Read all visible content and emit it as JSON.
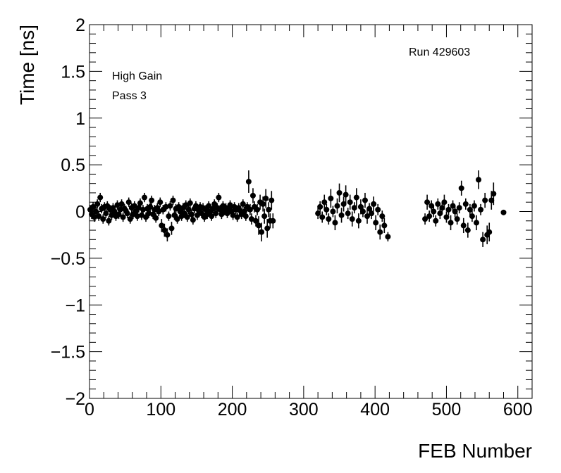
{
  "chart_data": {
    "type": "scatter",
    "title": "",
    "xlabel": "FEB Number",
    "ylabel": "Time [ns]",
    "xlim": [
      0,
      620
    ],
    "ylim": [
      -2,
      2
    ],
    "x_ticks": [
      "0",
      "100",
      "200",
      "300",
      "400",
      "500",
      "600"
    ],
    "y_ticks": [
      "−2",
      "−1.5",
      "−1",
      "−0.5",
      "0",
      "0.5",
      "1",
      "1.5",
      "2"
    ],
    "grid": false,
    "annotations": {
      "gain": "High Gain",
      "pass": "Pass 3",
      "run": "Run 429603"
    },
    "series": [
      {
        "marker": "filled-circle",
        "color": "#000000",
        "points": [
          {
            "x": 1,
            "y": 0.02,
            "err": 0.05
          },
          {
            "x": 3,
            "y": -0.03,
            "err": 0.05
          },
          {
            "x": 5,
            "y": 0.05,
            "err": 0.05
          },
          {
            "x": 7,
            "y": -0.06,
            "err": 0.05
          },
          {
            "x": 9,
            "y": 0.0,
            "err": 0.05
          },
          {
            "x": 11,
            "y": 0.08,
            "err": 0.05
          },
          {
            "x": 13,
            "y": -0.05,
            "err": 0.05
          },
          {
            "x": 15,
            "y": 0.15,
            "err": 0.05
          },
          {
            "x": 17,
            "y": 0.03,
            "err": 0.05
          },
          {
            "x": 19,
            "y": -0.08,
            "err": 0.05
          },
          {
            "x": 21,
            "y": 0.05,
            "err": 0.05
          },
          {
            "x": 23,
            "y": -0.02,
            "err": 0.05
          },
          {
            "x": 25,
            "y": 0.06,
            "err": 0.05
          },
          {
            "x": 27,
            "y": -0.1,
            "err": 0.05
          },
          {
            "x": 29,
            "y": 0.02,
            "err": 0.05
          },
          {
            "x": 31,
            "y": -0.04,
            "err": 0.05
          },
          {
            "x": 33,
            "y": 0.04,
            "err": 0.05
          },
          {
            "x": 35,
            "y": 0.0,
            "err": 0.05
          },
          {
            "x": 37,
            "y": -0.05,
            "err": 0.05
          },
          {
            "x": 39,
            "y": 0.07,
            "err": 0.05
          },
          {
            "x": 41,
            "y": -0.03,
            "err": 0.05
          },
          {
            "x": 43,
            "y": 0.02,
            "err": 0.05
          },
          {
            "x": 45,
            "y": 0.08,
            "err": 0.05
          },
          {
            "x": 47,
            "y": -0.06,
            "err": 0.05
          },
          {
            "x": 49,
            "y": 0.03,
            "err": 0.05
          },
          {
            "x": 51,
            "y": 0.01,
            "err": 0.05
          },
          {
            "x": 53,
            "y": -0.02,
            "err": 0.05
          },
          {
            "x": 55,
            "y": 0.1,
            "err": 0.05
          },
          {
            "x": 57,
            "y": -0.08,
            "err": 0.05
          },
          {
            "x": 59,
            "y": 0.04,
            "err": 0.05
          },
          {
            "x": 61,
            "y": -0.03,
            "err": 0.05
          },
          {
            "x": 63,
            "y": 0.06,
            "err": 0.05
          },
          {
            "x": 65,
            "y": 0.0,
            "err": 0.05
          },
          {
            "x": 67,
            "y": -0.05,
            "err": 0.05
          },
          {
            "x": 69,
            "y": 0.04,
            "err": 0.05
          },
          {
            "x": 71,
            "y": 0.09,
            "err": 0.05
          },
          {
            "x": 73,
            "y": -0.04,
            "err": 0.05
          },
          {
            "x": 75,
            "y": 0.02,
            "err": 0.05
          },
          {
            "x": 77,
            "y": 0.15,
            "err": 0.05
          },
          {
            "x": 79,
            "y": -0.06,
            "err": 0.05
          },
          {
            "x": 81,
            "y": 0.03,
            "err": 0.05
          },
          {
            "x": 83,
            "y": -0.02,
            "err": 0.05
          },
          {
            "x": 85,
            "y": 0.05,
            "err": 0.05
          },
          {
            "x": 87,
            "y": 0.12,
            "err": 0.05
          },
          {
            "x": 89,
            "y": -0.03,
            "err": 0.05
          },
          {
            "x": 91,
            "y": 0.02,
            "err": 0.05
          },
          {
            "x": 93,
            "y": -0.07,
            "err": 0.05
          },
          {
            "x": 95,
            "y": 0.04,
            "err": 0.05
          },
          {
            "x": 97,
            "y": 0.0,
            "err": 0.05
          },
          {
            "x": 99,
            "y": 0.1,
            "err": 0.05
          },
          {
            "x": 101,
            "y": -0.15,
            "err": 0.07
          },
          {
            "x": 103,
            "y": 0.02,
            "err": 0.05
          },
          {
            "x": 105,
            "y": -0.2,
            "err": 0.07
          },
          {
            "x": 107,
            "y": 0.05,
            "err": 0.05
          },
          {
            "x": 109,
            "y": -0.25,
            "err": 0.07
          },
          {
            "x": 111,
            "y": -0.05,
            "err": 0.05
          },
          {
            "x": 113,
            "y": 0.06,
            "err": 0.05
          },
          {
            "x": 115,
            "y": -0.18,
            "err": 0.07
          },
          {
            "x": 117,
            "y": 0.12,
            "err": 0.05
          },
          {
            "x": 119,
            "y": -0.04,
            "err": 0.05
          },
          {
            "x": 121,
            "y": 0.03,
            "err": 0.05
          },
          {
            "x": 123,
            "y": -0.08,
            "err": 0.05
          },
          {
            "x": 125,
            "y": 0.05,
            "err": 0.05
          },
          {
            "x": 127,
            "y": 0.0,
            "err": 0.05
          },
          {
            "x": 129,
            "y": -0.05,
            "err": 0.05
          },
          {
            "x": 131,
            "y": 0.04,
            "err": 0.05
          },
          {
            "x": 133,
            "y": -0.02,
            "err": 0.05
          },
          {
            "x": 135,
            "y": 0.07,
            "err": 0.05
          },
          {
            "x": 137,
            "y": -0.06,
            "err": 0.05
          },
          {
            "x": 139,
            "y": 0.02,
            "err": 0.05
          },
          {
            "x": 141,
            "y": 0.09,
            "err": 0.05
          },
          {
            "x": 143,
            "y": -0.03,
            "err": 0.05
          },
          {
            "x": 145,
            "y": -0.09,
            "err": 0.05
          },
          {
            "x": 147,
            "y": 0.03,
            "err": 0.05
          },
          {
            "x": 149,
            "y": 0.06,
            "err": 0.05
          },
          {
            "x": 151,
            "y": -0.04,
            "err": 0.05
          },
          {
            "x": 153,
            "y": 0.01,
            "err": 0.05
          },
          {
            "x": 155,
            "y": 0.05,
            "err": 0.05
          },
          {
            "x": 157,
            "y": -0.02,
            "err": 0.05
          },
          {
            "x": 159,
            "y": 0.04,
            "err": 0.05
          },
          {
            "x": 161,
            "y": -0.06,
            "err": 0.05
          },
          {
            "x": 163,
            "y": 0.02,
            "err": 0.05
          },
          {
            "x": 165,
            "y": -0.03,
            "err": 0.05
          },
          {
            "x": 167,
            "y": 0.06,
            "err": 0.05
          },
          {
            "x": 169,
            "y": 0.0,
            "err": 0.05
          },
          {
            "x": 171,
            "y": -0.05,
            "err": 0.05
          },
          {
            "x": 173,
            "y": 0.03,
            "err": 0.05
          },
          {
            "x": 175,
            "y": 0.08,
            "err": 0.05
          },
          {
            "x": 177,
            "y": -0.02,
            "err": 0.05
          },
          {
            "x": 179,
            "y": 0.04,
            "err": 0.05
          },
          {
            "x": 181,
            "y": 0.15,
            "err": 0.05
          },
          {
            "x": 183,
            "y": 0.02,
            "err": 0.05
          },
          {
            "x": 185,
            "y": -0.03,
            "err": 0.05
          },
          {
            "x": 187,
            "y": 0.06,
            "err": 0.05
          },
          {
            "x": 189,
            "y": 0.01,
            "err": 0.05
          },
          {
            "x": 191,
            "y": 0.04,
            "err": 0.05
          },
          {
            "x": 193,
            "y": -0.02,
            "err": 0.05
          },
          {
            "x": 195,
            "y": 0.03,
            "err": 0.05
          },
          {
            "x": 197,
            "y": 0.07,
            "err": 0.05
          },
          {
            "x": 199,
            "y": 0.0,
            "err": 0.05
          },
          {
            "x": 201,
            "y": -0.04,
            "err": 0.05
          },
          {
            "x": 203,
            "y": 0.05,
            "err": 0.05
          },
          {
            "x": 205,
            "y": 0.02,
            "err": 0.05
          },
          {
            "x": 207,
            "y": -0.06,
            "err": 0.05
          },
          {
            "x": 209,
            "y": 0.04,
            "err": 0.05
          },
          {
            "x": 211,
            "y": 0.01,
            "err": 0.05
          },
          {
            "x": 213,
            "y": -0.03,
            "err": 0.05
          },
          {
            "x": 215,
            "y": 0.08,
            "err": 0.05
          },
          {
            "x": 217,
            "y": 0.0,
            "err": 0.05
          },
          {
            "x": 219,
            "y": -0.05,
            "err": 0.05
          },
          {
            "x": 221,
            "y": 0.05,
            "err": 0.05
          },
          {
            "x": 223,
            "y": 0.32,
            "err": 0.12
          },
          {
            "x": 225,
            "y": 0.02,
            "err": 0.06
          },
          {
            "x": 227,
            "y": -0.08,
            "err": 0.06
          },
          {
            "x": 229,
            "y": 0.17,
            "err": 0.08
          },
          {
            "x": 231,
            "y": 0.05,
            "err": 0.06
          },
          {
            "x": 233,
            "y": -0.1,
            "err": 0.06
          },
          {
            "x": 235,
            "y": 0.02,
            "err": 0.06
          },
          {
            "x": 237,
            "y": -0.15,
            "err": 0.1
          },
          {
            "x": 239,
            "y": 0.1,
            "err": 0.08
          },
          {
            "x": 241,
            "y": -0.22,
            "err": 0.1
          },
          {
            "x": 243,
            "y": 0.08,
            "err": 0.08
          },
          {
            "x": 245,
            "y": -0.05,
            "err": 0.08
          },
          {
            "x": 247,
            "y": 0.14,
            "err": 0.1
          },
          {
            "x": 249,
            "y": -0.18,
            "err": 0.1
          },
          {
            "x": 251,
            "y": 0.02,
            "err": 0.08
          },
          {
            "x": 253,
            "y": -0.1,
            "err": 0.08
          },
          {
            "x": 255,
            "y": 0.12,
            "err": 0.1
          },
          {
            "x": 257,
            "y": -0.1,
            "err": 0.08
          },
          {
            "x": 320,
            "y": -0.02,
            "err": 0.06
          },
          {
            "x": 323,
            "y": 0.05,
            "err": 0.06
          },
          {
            "x": 326,
            "y": -0.06,
            "err": 0.06
          },
          {
            "x": 329,
            "y": 0.1,
            "err": 0.08
          },
          {
            "x": 332,
            "y": 0.02,
            "err": 0.06
          },
          {
            "x": 335,
            "y": -0.08,
            "err": 0.06
          },
          {
            "x": 338,
            "y": 0.14,
            "err": 0.1
          },
          {
            "x": 341,
            "y": 0.0,
            "err": 0.06
          },
          {
            "x": 344,
            "y": -0.12,
            "err": 0.08
          },
          {
            "x": 347,
            "y": 0.06,
            "err": 0.08
          },
          {
            "x": 350,
            "y": 0.2,
            "err": 0.1
          },
          {
            "x": 353,
            "y": -0.04,
            "err": 0.08
          },
          {
            "x": 356,
            "y": 0.08,
            "err": 0.08
          },
          {
            "x": 359,
            "y": 0.18,
            "err": 0.1
          },
          {
            "x": 362,
            "y": -0.02,
            "err": 0.06
          },
          {
            "x": 365,
            "y": 0.1,
            "err": 0.08
          },
          {
            "x": 368,
            "y": -0.08,
            "err": 0.08
          },
          {
            "x": 371,
            "y": 0.04,
            "err": 0.06
          },
          {
            "x": 374,
            "y": 0.15,
            "err": 0.1
          },
          {
            "x": 377,
            "y": -0.1,
            "err": 0.08
          },
          {
            "x": 380,
            "y": 0.05,
            "err": 0.08
          },
          {
            "x": 383,
            "y": 0.0,
            "err": 0.06
          },
          {
            "x": 386,
            "y": 0.12,
            "err": 0.08
          },
          {
            "x": 389,
            "y": -0.05,
            "err": 0.08
          },
          {
            "x": 392,
            "y": 0.03,
            "err": 0.06
          },
          {
            "x": 395,
            "y": -0.02,
            "err": 0.06
          },
          {
            "x": 398,
            "y": 0.08,
            "err": 0.08
          },
          {
            "x": 401,
            "y": -0.12,
            "err": 0.08
          },
          {
            "x": 404,
            "y": 0.02,
            "err": 0.06
          },
          {
            "x": 407,
            "y": -0.22,
            "err": 0.08
          },
          {
            "x": 410,
            "y": -0.05,
            "err": 0.06
          },
          {
            "x": 413,
            "y": -0.15,
            "err": 0.08
          },
          {
            "x": 418,
            "y": -0.27,
            "err": 0.05
          },
          {
            "x": 470,
            "y": -0.08,
            "err": 0.06
          },
          {
            "x": 473,
            "y": 0.1,
            "err": 0.08
          },
          {
            "x": 476,
            "y": -0.05,
            "err": 0.06
          },
          {
            "x": 479,
            "y": 0.06,
            "err": 0.06
          },
          {
            "x": 482,
            "y": 0.0,
            "err": 0.06
          },
          {
            "x": 485,
            "y": -0.1,
            "err": 0.06
          },
          {
            "x": 488,
            "y": 0.08,
            "err": 0.06
          },
          {
            "x": 491,
            "y": -0.02,
            "err": 0.06
          },
          {
            "x": 494,
            "y": 0.04,
            "err": 0.06
          },
          {
            "x": 497,
            "y": 0.1,
            "err": 0.08
          },
          {
            "x": 500,
            "y": -0.06,
            "err": 0.06
          },
          {
            "x": 503,
            "y": 0.02,
            "err": 0.06
          },
          {
            "x": 506,
            "y": -0.12,
            "err": 0.08
          },
          {
            "x": 509,
            "y": 0.06,
            "err": 0.06
          },
          {
            "x": 512,
            "y": 0.0,
            "err": 0.06
          },
          {
            "x": 515,
            "y": -0.08,
            "err": 0.06
          },
          {
            "x": 518,
            "y": 0.04,
            "err": 0.06
          },
          {
            "x": 521,
            "y": 0.25,
            "err": 0.08
          },
          {
            "x": 524,
            "y": -0.15,
            "err": 0.08
          },
          {
            "x": 527,
            "y": 0.08,
            "err": 0.06
          },
          {
            "x": 530,
            "y": -0.2,
            "err": 0.08
          },
          {
            "x": 533,
            "y": 0.02,
            "err": 0.06
          },
          {
            "x": 536,
            "y": -0.05,
            "err": 0.06
          },
          {
            "x": 539,
            "y": 0.06,
            "err": 0.06
          },
          {
            "x": 542,
            "y": -0.12,
            "err": 0.08
          },
          {
            "x": 545,
            "y": 0.34,
            "err": 0.1
          },
          {
            "x": 548,
            "y": 0.02,
            "err": 0.06
          },
          {
            "x": 551,
            "y": -0.3,
            "err": 0.08
          },
          {
            "x": 554,
            "y": 0.12,
            "err": 0.08
          },
          {
            "x": 557,
            "y": -0.25,
            "err": 0.1
          },
          {
            "x": 560,
            "y": -0.22,
            "err": 0.1
          },
          {
            "x": 563,
            "y": 0.12,
            "err": 0.1
          },
          {
            "x": 566,
            "y": 0.19,
            "err": 0.12
          },
          {
            "x": 580,
            "y": -0.01,
            "err": 0.0
          }
        ]
      }
    ]
  }
}
